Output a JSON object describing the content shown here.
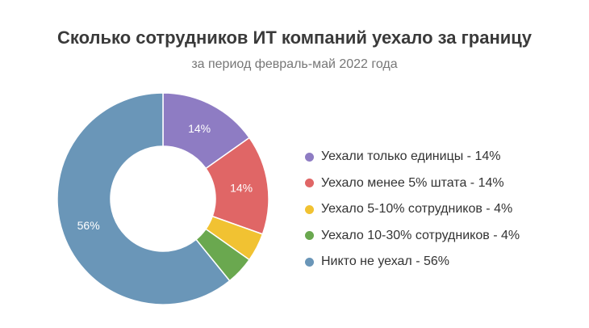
{
  "chart_data": {
    "type": "pie",
    "title": "Сколько сотрудников ИТ компаний уехало за границу",
    "subtitle": "за период февраль-май 2022 года",
    "categories": [
      "Уехали только единицы",
      "Уехало менее 5% штата",
      "Уехало 5-10% сотрудников",
      "Уехало 10-30% сотрудников",
      "Никто не уехал"
    ],
    "values": [
      14,
      14,
      4,
      4,
      56
    ],
    "value_labels": [
      "14%",
      "14%",
      "",
      "",
      "56%"
    ],
    "legend_labels": [
      "Уехали только единицы - 14%",
      "Уехало менее 5% штата - 14%",
      "Уехало 5-10% сотрудников - 4%",
      "Уехало 10-30% сотрудников - 4%",
      "Никто не уехал - 56%"
    ],
    "colors": [
      "#8e7cc3",
      "#e06666",
      "#f1c232",
      "#6aa84f",
      "#6a96b8"
    ],
    "donut": true,
    "legend_position": "right"
  }
}
